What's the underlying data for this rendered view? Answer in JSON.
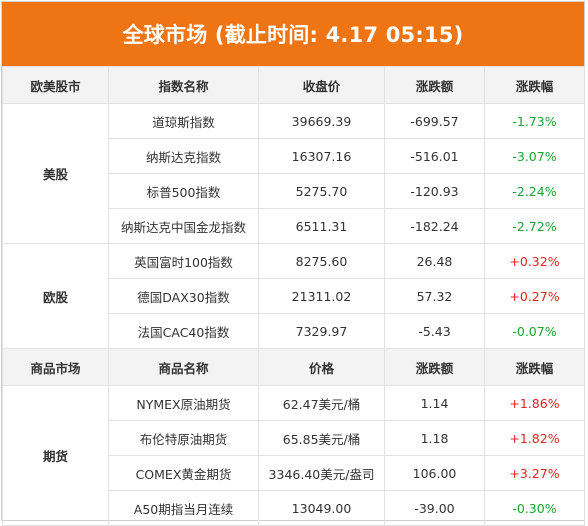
{
  "title": "全球市场 (截止时间: 4.17 05:15)",
  "colors": {
    "header_bg": "#ef7414",
    "up": "#e02323",
    "down": "#1aa234"
  },
  "section1": {
    "headers": [
      "欧美股市",
      "指数名称",
      "收盘价",
      "涨跌额",
      "涨跌幅"
    ],
    "groups": [
      {
        "market": "美股",
        "rows": [
          {
            "name": "道琼斯指数",
            "price": "39669.39",
            "change": "-699.57",
            "pct": "-1.73%",
            "dir": "down"
          },
          {
            "name": "纳斯达克指数",
            "price": "16307.16",
            "change": "-516.01",
            "pct": "-3.07%",
            "dir": "down"
          },
          {
            "name": "标普500指数",
            "price": "5275.70",
            "change": "-120.93",
            "pct": "-2.24%",
            "dir": "down"
          },
          {
            "name": "纳斯达克中国金龙指数",
            "price": "6511.31",
            "change": "-182.24",
            "pct": "-2.72%",
            "dir": "down"
          }
        ]
      },
      {
        "market": "欧股",
        "rows": [
          {
            "name": "英国富时100指数",
            "price": "8275.60",
            "change": "26.48",
            "pct": "+0.32%",
            "dir": "up"
          },
          {
            "name": "德国DAX30指数",
            "price": "21311.02",
            "change": "57.32",
            "pct": "+0.27%",
            "dir": "up"
          },
          {
            "name": "法国CAC40指数",
            "price": "7329.97",
            "change": "-5.43",
            "pct": "-0.07%",
            "dir": "down"
          }
        ]
      }
    ]
  },
  "section2": {
    "headers": [
      "商品市场",
      "商品名称",
      "价格",
      "涨跌额",
      "涨跌幅"
    ],
    "groups": [
      {
        "market": "期货",
        "rows": [
          {
            "name": "NYMEX原油期货",
            "price": "62.47美元/桶",
            "change": "1.14",
            "pct": "+1.86%",
            "dir": "up"
          },
          {
            "name": "布伦特原油期货",
            "price": "65.85美元/桶",
            "change": "1.18",
            "pct": "+1.82%",
            "dir": "up"
          },
          {
            "name": "COMEX黄金期货",
            "price": "3346.40美元/盎司",
            "change": "106.00",
            "pct": "+3.27%",
            "dir": "up"
          },
          {
            "name": "A50期指当月连续",
            "price": "13049.00",
            "change": "-39.00",
            "pct": "-0.30%",
            "dir": "down"
          }
        ]
      }
    ]
  }
}
